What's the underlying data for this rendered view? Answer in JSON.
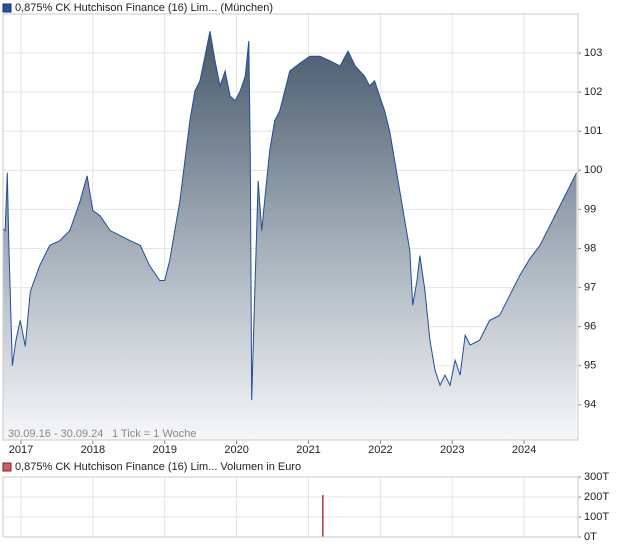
{
  "chart_data": [
    {
      "type": "area",
      "series": [
        {
          "name": "0,875% CK Hutchison Finance (16) Lim... (München)",
          "color": "#1f4e9c",
          "x": [
            2016.75,
            2016.78,
            2016.81,
            2016.83,
            2016.88,
            2016.93,
            2016.99,
            2017.06,
            2017.13,
            2017.26,
            2017.4,
            2017.54,
            2017.68,
            2017.82,
            2017.92,
            2018.0,
            2018.1,
            2018.24,
            2018.38,
            2018.52,
            2018.66,
            2018.79,
            2018.93,
            2019.0,
            2019.07,
            2019.14,
            2019.21,
            2019.28,
            2019.35,
            2019.42,
            2019.49,
            2019.56,
            2019.63,
            2019.7,
            2019.77,
            2019.84,
            2019.91,
            2019.98,
            2020.05,
            2020.12,
            2020.17,
            2020.19,
            2020.21,
            2020.25,
            2020.3,
            2020.35,
            2020.39,
            2020.46,
            2020.53,
            2020.6,
            2020.67,
            2020.74,
            2020.88,
            2021.02,
            2021.16,
            2021.3,
            2021.44,
            2021.55,
            2021.65,
            2021.78,
            2021.85,
            2021.92,
            2021.99,
            2022.06,
            2022.13,
            2022.2,
            2022.27,
            2022.34,
            2022.41,
            2022.45,
            2022.51,
            2022.55,
            2022.62,
            2022.69,
            2022.76,
            2022.83,
            2022.9,
            2022.97,
            2023.04,
            2023.11,
            2023.18,
            2023.25,
            2023.38,
            2023.52,
            2023.66,
            2023.8,
            2023.94,
            2024.08,
            2024.22,
            2024.36,
            2024.5,
            2024.64,
            2024.73
          ],
          "values": [
            98.5,
            98.46,
            99.94,
            98.2,
            95.0,
            95.65,
            96.16,
            95.5,
            96.9,
            97.56,
            98.08,
            98.2,
            98.46,
            99.2,
            99.86,
            98.97,
            98.84,
            98.46,
            98.33,
            98.2,
            98.08,
            97.56,
            97.18,
            97.18,
            97.7,
            98.46,
            99.2,
            100.24,
            101.27,
            102.03,
            102.29,
            102.92,
            103.56,
            102.8,
            102.16,
            102.54,
            101.9,
            101.78,
            102.03,
            102.41,
            103.31,
            100.5,
            94.12,
            96.67,
            99.73,
            98.46,
            99.22,
            100.5,
            101.27,
            101.52,
            102.03,
            102.54,
            102.74,
            102.92,
            102.92,
            102.8,
            102.67,
            103.05,
            102.67,
            102.41,
            102.16,
            102.29,
            101.9,
            101.52,
            101.0,
            100.24,
            99.48,
            98.71,
            97.95,
            96.55,
            97.18,
            97.82,
            96.93,
            95.65,
            94.89,
            94.5,
            94.76,
            94.5,
            95.14,
            94.76,
            95.78,
            95.53,
            95.65,
            96.16,
            96.29,
            96.8,
            97.31,
            97.74,
            98.08,
            98.59,
            99.1,
            99.61,
            99.94
          ]
        }
      ],
      "xlim": [
        2016.75,
        2024.75
      ],
      "ylim": [
        93.1,
        104
      ],
      "xticks": [
        2017,
        2018,
        2019,
        2020,
        2021,
        2022,
        2023,
        2024
      ],
      "yticks": [
        94,
        95,
        96,
        97,
        98,
        99,
        100,
        101,
        102,
        103
      ],
      "grid": true,
      "annotations": [
        "30.09.16 - 30.09.24",
        "1 Tick = 1 Woche"
      ]
    },
    {
      "type": "bar",
      "series": [
        {
          "name": "0,875% CK Hutchison Finance (16) Lim... Volumen in Euro",
          "color": "#b03a3a",
          "x": [
            2021.2
          ],
          "values": [
            210000
          ]
        }
      ],
      "xlim": [
        2016.75,
        2024.75
      ],
      "ylim": [
        0,
        300000
      ],
      "yticks": [
        {
          "value": 0,
          "label": "0T"
        },
        {
          "value": 100000,
          "label": "100T"
        },
        {
          "value": 200000,
          "label": "200T"
        },
        {
          "value": 300000,
          "label": "300T"
        }
      ],
      "grid": true
    }
  ]
}
